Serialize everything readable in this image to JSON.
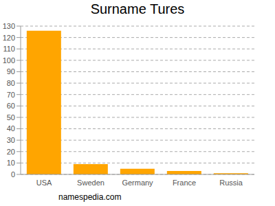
{
  "chart_data": {
    "type": "bar",
    "title": "Surname Tures",
    "categories": [
      "USA",
      "Sweden",
      "Germany",
      "France",
      "Russia"
    ],
    "values": [
      126,
      9,
      5,
      3,
      1
    ],
    "color": "#ffa500",
    "ylim": [
      0,
      130
    ],
    "yticks": [
      0,
      10,
      20,
      30,
      40,
      50,
      60,
      70,
      80,
      90,
      100,
      110,
      120,
      130
    ],
    "grid": true,
    "annotations": [
      "namespedia.com"
    ]
  }
}
